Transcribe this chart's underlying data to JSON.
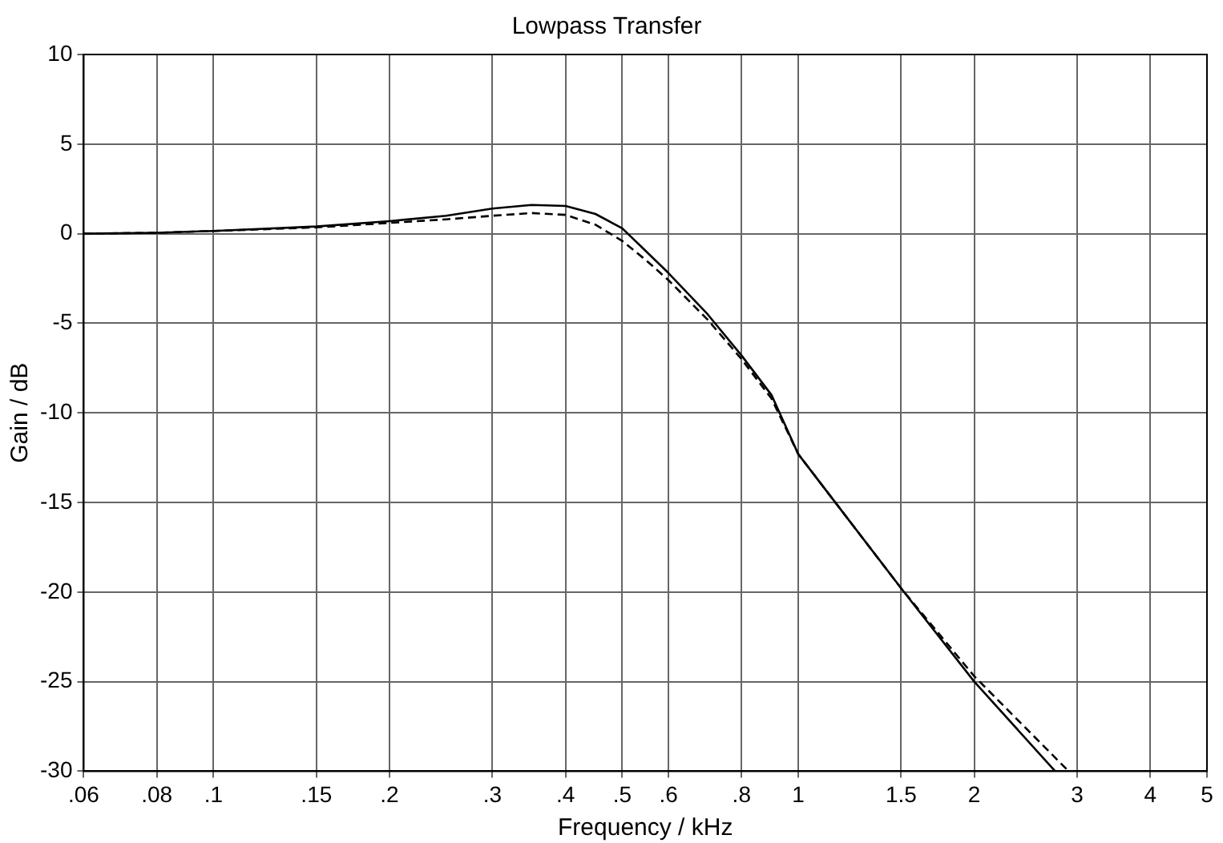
{
  "chart_data": {
    "type": "line",
    "title": "Lowpass Transfer",
    "xlabel": "Frequency / kHz",
    "ylabel": "Gain / dB",
    "log": "x",
    "xlim": [
      0.06,
      5
    ],
    "xticks": [
      {
        "value": 0.06,
        "label": ".06"
      },
      {
        "value": 0.08,
        "label": ".08"
      },
      {
        "value": 0.1,
        "label": ".1"
      },
      {
        "value": 0.15,
        "label": ".15"
      },
      {
        "value": 0.2,
        "label": ".2"
      },
      {
        "value": 0.3,
        "label": ".3"
      },
      {
        "value": 0.4,
        "label": ".4"
      },
      {
        "value": 0.5,
        "label": ".5"
      },
      {
        "value": 0.6,
        "label": ".6"
      },
      {
        "value": 0.8,
        "label": ".8"
      },
      1,
      1.5,
      2,
      3,
      4,
      5
    ],
    "ylim": [
      -30,
      10
    ],
    "yticks": [
      -30,
      -25,
      -20,
      -15,
      -10,
      -5,
      0,
      5,
      10
    ],
    "grid": true,
    "legend": false,
    "marker": "none",
    "series": [
      {
        "color": "#000000",
        "line_style": "solid",
        "x": [
          0.06,
          0.08,
          0.1,
          0.15,
          0.2,
          0.25,
          0.3,
          0.35,
          0.4,
          0.45,
          0.5,
          0.55,
          0.6,
          0.7,
          0.8,
          0.9,
          1,
          1.5,
          2,
          2.75
        ],
        "values": [
          0,
          0.05,
          0.15,
          0.4,
          0.7,
          1.0,
          1.4,
          1.6,
          1.55,
          1.1,
          0.3,
          -1,
          -2.2,
          -4.5,
          -6.8,
          -9,
          -12.3,
          -19.8,
          -25,
          -30
        ]
      },
      {
        "color": "#000000",
        "line_style": "dashed",
        "x": [
          0.06,
          0.08,
          0.1,
          0.15,
          0.2,
          0.25,
          0.3,
          0.35,
          0.4,
          0.45,
          0.5,
          0.55,
          0.6,
          0.7,
          0.8,
          0.9,
          1,
          1.5,
          2,
          2.9
        ],
        "values": [
          0,
          0.05,
          0.15,
          0.35,
          0.6,
          0.8,
          1.0,
          1.15,
          1.05,
          0.5,
          -0.4,
          -1.5,
          -2.6,
          -4.8,
          -7,
          -9.2,
          -12.3,
          -19.8,
          -24.7,
          -30
        ]
      }
    ]
  }
}
